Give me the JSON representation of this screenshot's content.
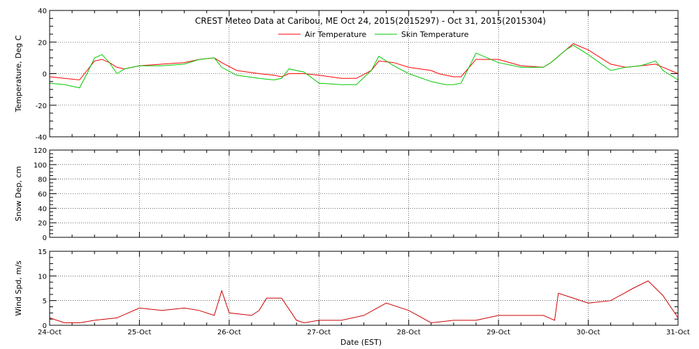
{
  "chart_data": [
    {
      "type": "line",
      "title": "CREST Meteo Data at Caribou, ME   Oct 24, 2015(2015297) - Oct 31, 2015(2015304)",
      "xlabel": "",
      "ylabel": "Temperature, Deg C",
      "xlim": [
        "2015-10-24",
        "2015-10-31"
      ],
      "ylim": [
        -40,
        40
      ],
      "yticks": [
        -40,
        -20,
        0,
        20,
        40
      ],
      "grid": true,
      "legend_position": "top",
      "series": [
        {
          "name": "Air Temperature",
          "color": "#ff0000",
          "x": [
            "2015-10-24 00:00",
            "2015-10-24 04:00",
            "2015-10-24 08:00",
            "2015-10-24 10:00",
            "2015-10-24 12:00",
            "2015-10-24 14:00",
            "2015-10-24 16:00",
            "2015-10-24 18:00",
            "2015-10-24 20:00",
            "2015-10-25 00:00",
            "2015-10-25 06:00",
            "2015-10-25 12:00",
            "2015-10-25 16:00",
            "2015-10-25 20:00",
            "2015-10-25 22:00",
            "2015-10-26 02:00",
            "2015-10-26 08:00",
            "2015-10-26 12:00",
            "2015-10-26 14:00",
            "2015-10-26 16:00",
            "2015-10-26 20:00",
            "2015-10-27 00:00",
            "2015-10-27 06:00",
            "2015-10-27 10:00",
            "2015-10-27 14:00",
            "2015-10-27 16:00",
            "2015-10-27 20:00",
            "2015-10-28 00:00",
            "2015-10-28 06:00",
            "2015-10-28 08:00",
            "2015-10-28 10:00",
            "2015-10-28 12:00",
            "2015-10-28 14:00",
            "2015-10-28 18:00",
            "2015-10-29 00:00",
            "2015-10-29 06:00",
            "2015-10-29 12:00",
            "2015-10-29 14:00",
            "2015-10-29 16:00",
            "2015-10-29 18:00",
            "2015-10-29 20:00",
            "2015-10-30 00:00",
            "2015-10-30 06:00",
            "2015-10-30 10:00",
            "2015-10-30 14:00",
            "2015-10-30 18:00",
            "2015-10-30 20:00",
            "2015-10-31 00:00"
          ],
          "y": [
            -2,
            -3,
            -4,
            2,
            8,
            9,
            7,
            4,
            3,
            5,
            6,
            7,
            9,
            10,
            7,
            2,
            0,
            -1,
            -2,
            0,
            0,
            -1,
            -3,
            -3,
            2,
            8,
            7,
            4,
            2,
            0,
            -1,
            -2,
            -2,
            9,
            9,
            5,
            4,
            7,
            11,
            15,
            19,
            15,
            6,
            4,
            5,
            6,
            4,
            0
          ]
        },
        {
          "name": "Skin Temperature",
          "color": "#00c800",
          "x": [
            "2015-10-24 00:00",
            "2015-10-24 04:00",
            "2015-10-24 08:00",
            "2015-10-24 10:00",
            "2015-10-24 12:00",
            "2015-10-24 14:00",
            "2015-10-24 16:00",
            "2015-10-24 18:00",
            "2015-10-24 20:00",
            "2015-10-25 00:00",
            "2015-10-25 06:00",
            "2015-10-25 12:00",
            "2015-10-25 16:00",
            "2015-10-25 20:00",
            "2015-10-25 22:00",
            "2015-10-26 02:00",
            "2015-10-26 08:00",
            "2015-10-26 12:00",
            "2015-10-26 14:00",
            "2015-10-26 16:00",
            "2015-10-26 20:00",
            "2015-10-27 00:00",
            "2015-10-27 06:00",
            "2015-10-27 10:00",
            "2015-10-27 14:00",
            "2015-10-27 16:00",
            "2015-10-27 20:00",
            "2015-10-28 00:00",
            "2015-10-28 06:00",
            "2015-10-28 08:00",
            "2015-10-28 10:00",
            "2015-10-28 12:00",
            "2015-10-28 14:00",
            "2015-10-28 18:00",
            "2015-10-29 00:00",
            "2015-10-29 06:00",
            "2015-10-29 12:00",
            "2015-10-29 14:00",
            "2015-10-29 16:00",
            "2015-10-29 18:00",
            "2015-10-29 20:00",
            "2015-10-30 00:00",
            "2015-10-30 06:00",
            "2015-10-30 10:00",
            "2015-10-30 14:00",
            "2015-10-30 18:00",
            "2015-10-30 20:00",
            "2015-10-31 00:00"
          ],
          "y": [
            -6,
            -7,
            -9,
            0,
            10,
            12,
            7,
            0,
            3,
            5,
            5,
            6,
            9,
            10,
            4,
            -1,
            -3,
            -4,
            -3,
            3,
            1,
            -6,
            -7,
            -7,
            2,
            11,
            5,
            0,
            -5,
            -6,
            -7,
            -7,
            -6,
            13,
            7,
            4,
            4,
            7,
            11,
            15,
            18,
            12,
            2,
            4,
            5,
            8,
            2,
            -4
          ]
        }
      ]
    },
    {
      "type": "line",
      "title": "",
      "xlabel": "",
      "ylabel": "Snow Dep, cm",
      "xlim": [
        "2015-10-24",
        "2015-10-31"
      ],
      "ylim": [
        0,
        120
      ],
      "yticks": [
        0,
        20,
        40,
        60,
        80,
        100,
        120
      ],
      "grid": true,
      "series": []
    },
    {
      "type": "line",
      "title": "",
      "xlabel": "Date (EST)",
      "ylabel": "Wind Spd, m/s",
      "xlim": [
        "2015-10-24",
        "2015-10-31"
      ],
      "ylim": [
        0,
        15
      ],
      "yticks": [
        0,
        5,
        10,
        15
      ],
      "xticks": [
        "24-Oct",
        "25-Oct",
        "26-Oct",
        "27-Oct",
        "28-Oct",
        "29-Oct",
        "30-Oct",
        "31-Oct"
      ],
      "grid": true,
      "series": [
        {
          "name": "Wind Speed",
          "color": "#cc0000",
          "x": [
            "2015-10-24 00:00",
            "2015-10-24 04:00",
            "2015-10-24 08:00",
            "2015-10-24 12:00",
            "2015-10-24 18:00",
            "2015-10-25 00:00",
            "2015-10-25 06:00",
            "2015-10-25 12:00",
            "2015-10-25 16:00",
            "2015-10-25 20:00",
            "2015-10-25 22:00",
            "2015-10-26 00:00",
            "2015-10-26 06:00",
            "2015-10-26 08:00",
            "2015-10-26 10:00",
            "2015-10-26 14:00",
            "2015-10-26 18:00",
            "2015-10-26 20:00",
            "2015-10-27 00:00",
            "2015-10-27 06:00",
            "2015-10-27 12:00",
            "2015-10-27 18:00",
            "2015-10-28 00:00",
            "2015-10-28 06:00",
            "2015-10-28 12:00",
            "2015-10-28 18:00",
            "2015-10-29 00:00",
            "2015-10-29 06:00",
            "2015-10-29 12:00",
            "2015-10-29 15:00",
            "2015-10-29 16:00",
            "2015-10-29 20:00",
            "2015-10-30 00:00",
            "2015-10-30 06:00",
            "2015-10-30 12:00",
            "2015-10-30 16:00",
            "2015-10-30 20:00",
            "2015-10-31 00:00"
          ],
          "y": [
            1.5,
            0.5,
            0.5,
            1.0,
            1.5,
            3.5,
            3.0,
            3.5,
            3.0,
            2.0,
            7.0,
            2.5,
            2.0,
            3.0,
            5.5,
            5.5,
            1.0,
            0.5,
            1.0,
            1.0,
            2.0,
            4.5,
            3.0,
            0.5,
            1.0,
            1.0,
            2.0,
            2.0,
            2.0,
            1.0,
            6.5,
            5.5,
            4.5,
            5.0,
            7.5,
            9.0,
            6.0,
            1.5
          ]
        }
      ]
    }
  ]
}
